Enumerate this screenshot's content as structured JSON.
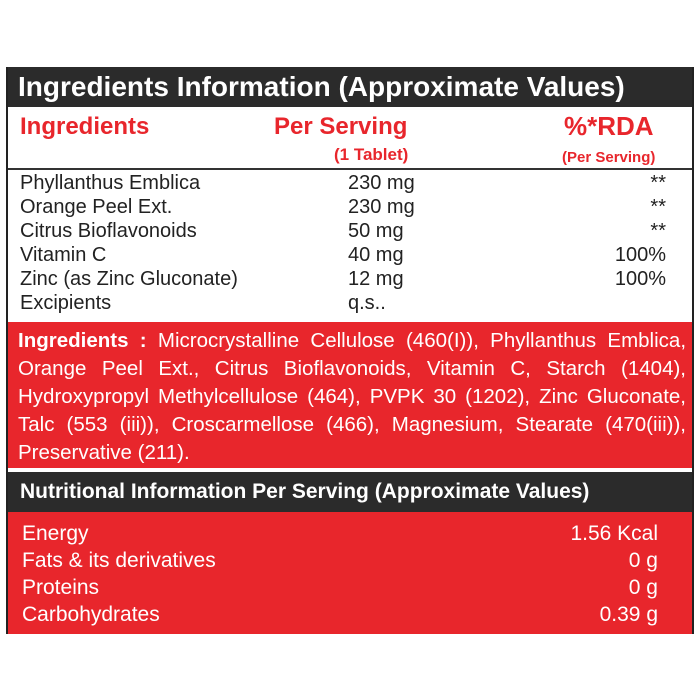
{
  "section1": {
    "title": "Ingredients Information (Approximate Values)"
  },
  "columns": {
    "ingredients": "Ingredients",
    "per_serving": "Per Serving",
    "per_serving_sub": "(1 Tablet)",
    "rda": "%*RDA",
    "rda_sub": "(Per Serving)"
  },
  "rows": [
    {
      "name": "Phyllanthus Emblica",
      "amount": "230 mg",
      "rda": "**"
    },
    {
      "name": "Orange Peel Ext.",
      "amount": "230 mg",
      "rda": "**"
    },
    {
      "name": "Citrus Bioflavonoids",
      "amount": "50 mg",
      "rda": "**"
    },
    {
      "name": "Vitamin C",
      "amount": "40 mg",
      "rda": "100%"
    },
    {
      "name": "Zinc (as Zinc Gluconate)",
      "amount": "12 mg",
      "rda": "100%"
    },
    {
      "name": "Excipients",
      "amount": "q.s..",
      "rda": ""
    }
  ],
  "ingredients_list": {
    "label": "Ingredients :",
    "text": "Microcrystalline Cellulose (460(I)), Phyllanthus Emblica, Orange Peel Ext., Citrus Bioflavonoids, Vitamin C, Starch (1404), Hydroxypropyl Methylcellulose (464), PVPK 30 (1202), Zinc Gluconate, Talc (553 (iii)), Croscarmellose (466), Magnesium, Stearate (470(iii)), Preservative (211)."
  },
  "section2": {
    "title": "Nutritional Information Per Serving (Approximate Values)"
  },
  "nutrition": [
    {
      "name": "Energy",
      "value": "1.56 Kcal"
    },
    {
      "name": "Fats & its derivatives",
      "value": "0 g"
    },
    {
      "name": "Proteins",
      "value": "0 g"
    },
    {
      "name": "Carbohydrates",
      "value": "0.39 g"
    }
  ],
  "colors": {
    "red": "#e8262c",
    "dark": "#2b2b2b"
  }
}
